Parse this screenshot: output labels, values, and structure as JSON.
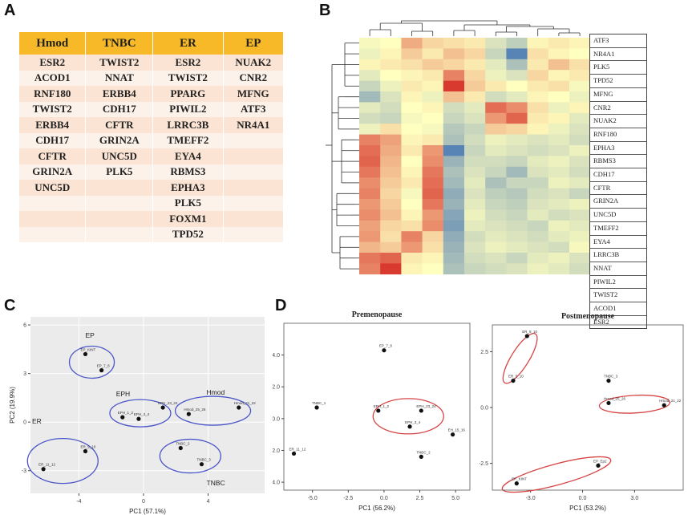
{
  "panels": {
    "a": "A",
    "b": "B",
    "c": "C",
    "d": "D"
  },
  "tableA": {
    "headers": [
      "Hmod",
      "TNBC",
      "ER",
      "EP"
    ],
    "rows": [
      [
        "ESR2",
        "TWIST2",
        "ESR2",
        "NUAK2"
      ],
      [
        "ACOD1",
        "NNAT",
        "TWIST2",
        "CNR2"
      ],
      [
        "RNF180",
        "ERBB4",
        "PPARG",
        "MFNG"
      ],
      [
        "TWIST2",
        "CDH17",
        "PIWIL2",
        "ATF3"
      ],
      [
        "ERBB4",
        "CFTR",
        "LRRC3B",
        "NR4A1"
      ],
      [
        "CDH17",
        "GRIN2A",
        "TMEFF2",
        ""
      ],
      [
        "CFTR",
        "UNC5D",
        "EYA4",
        ""
      ],
      [
        "GRIN2A",
        "PLK5",
        "RBMS3",
        ""
      ],
      [
        "UNC5D",
        "",
        "EPHA3",
        ""
      ],
      [
        "",
        "",
        "PLK5",
        ""
      ],
      [
        "",
        "",
        "FOXM1",
        ""
      ],
      [
        "",
        "",
        "TPD52",
        ""
      ]
    ]
  },
  "heatmap": {
    "genes": [
      "ATF3",
      "NR4A1",
      "PLK5",
      "TPD52",
      "MFNG",
      "CNR2",
      "NUAK2",
      "RNF180",
      "EPHA3",
      "RBMS3",
      "CDH17",
      "CFTR",
      "GRIN2A",
      "UNC5D",
      "TMEFF2",
      "EYA4",
      "LRRC3B",
      "NNAT",
      "PIWIL2",
      "TWIST2",
      "ACOD1",
      "ESR2"
    ],
    "values": [
      [
        -0.1,
        0.0,
        0.8,
        0.4,
        0.3,
        0.2,
        -0.4,
        -0.7,
        0.1,
        0.2,
        0.1
      ],
      [
        -0.2,
        0.1,
        0.5,
        0.2,
        0.6,
        0.4,
        -0.6,
        -1.8,
        0.3,
        0.1,
        0.0
      ],
      [
        0.1,
        0.2,
        0.3,
        0.5,
        0.4,
        0.2,
        -0.3,
        -0.9,
        0.2,
        0.6,
        0.3
      ],
      [
        -0.3,
        0.0,
        0.1,
        0.2,
        1.2,
        0.4,
        -0.2,
        -0.4,
        0.4,
        0.1,
        0.2
      ],
      [
        -0.6,
        -0.2,
        0.2,
        0.1,
        1.9,
        0.5,
        0.2,
        0.0,
        0.2,
        0.3,
        -0.1
      ],
      [
        -1.0,
        -0.4,
        0.1,
        -0.2,
        0.6,
        0.2,
        -0.5,
        -0.3,
        0.1,
        0.0,
        -0.2
      ],
      [
        -0.3,
        -0.5,
        0.0,
        0.1,
        -0.5,
        -0.3,
        1.4,
        1.1,
        0.3,
        -0.2,
        0.1
      ],
      [
        -0.5,
        -0.6,
        -0.1,
        0.0,
        -0.6,
        -0.4,
        1.0,
        1.5,
        0.2,
        0.1,
        -0.3
      ],
      [
        -0.2,
        0.3,
        0.0,
        -0.1,
        -0.8,
        -0.6,
        0.5,
        0.4,
        0.1,
        -0.2,
        -0.4
      ],
      [
        1.2,
        0.9,
        0.1,
        0.2,
        -0.9,
        -0.5,
        -0.2,
        -0.3,
        -0.4,
        -0.3,
        -0.5
      ],
      [
        1.4,
        0.8,
        0.2,
        1.0,
        -1.8,
        -0.6,
        -0.3,
        -0.4,
        -0.5,
        -0.4,
        -0.2
      ],
      [
        1.5,
        0.7,
        0.0,
        1.1,
        -1.1,
        -0.5,
        -0.5,
        -0.6,
        -0.3,
        -0.2,
        -0.4
      ],
      [
        1.3,
        0.6,
        0.1,
        1.3,
        -0.9,
        -0.4,
        -0.6,
        -1.0,
        -0.4,
        -0.3,
        -0.5
      ],
      [
        1.1,
        0.5,
        0.2,
        1.4,
        -1.0,
        -0.3,
        -0.9,
        -0.6,
        -0.6,
        -0.2,
        -0.3
      ],
      [
        1.2,
        0.4,
        -0.1,
        1.5,
        -1.2,
        -0.4,
        -0.7,
        -0.8,
        -0.5,
        -0.4,
        -0.6
      ],
      [
        1.0,
        0.5,
        0.0,
        1.3,
        -1.1,
        -0.3,
        -0.6,
        -0.7,
        -0.4,
        -0.3,
        -0.2
      ],
      [
        1.1,
        0.6,
        0.1,
        1.0,
        -1.3,
        -0.2,
        -0.5,
        -0.6,
        -0.3,
        -0.5,
        -0.4
      ],
      [
        0.9,
        0.4,
        0.3,
        1.1,
        -1.4,
        -0.3,
        -0.4,
        -0.5,
        -0.6,
        -0.2,
        -0.3
      ],
      [
        1.0,
        0.3,
        1.2,
        0.4,
        -1.2,
        -0.5,
        -0.3,
        -0.4,
        -0.5,
        -0.3,
        -0.2
      ],
      [
        0.7,
        0.5,
        1.0,
        0.3,
        -1.1,
        -0.4,
        -0.2,
        -0.3,
        -0.4,
        -0.5,
        -0.1
      ],
      [
        1.3,
        1.5,
        0.2,
        0.1,
        -1.0,
        -0.5,
        -0.4,
        -0.6,
        -0.3,
        -0.2,
        -0.4
      ],
      [
        1.2,
        1.9,
        0.1,
        0.0,
        -0.9,
        -0.6,
        -0.5,
        -0.4,
        -0.2,
        -0.3,
        -0.5
      ]
    ],
    "colors": {
      "low": "#4575b4",
      "mid": "#ffffbf",
      "high": "#d73027"
    }
  },
  "chart_data": [
    {
      "type": "scatter",
      "panel": "C",
      "xlabel": "PC1 (57.1%)",
      "ylabel": "PC2 (19.9%)",
      "xlim": [
        -7,
        7.5
      ],
      "ylim": [
        -4.4,
        6.5
      ],
      "xticks": [
        -4,
        0,
        4
      ],
      "yticks": [
        -3,
        0,
        3,
        6
      ],
      "points": [
        {
          "label": "EP_KINT",
          "x": -3.6,
          "y": 4.2
        },
        {
          "label": "EP_7_8",
          "x": -2.6,
          "y": 3.2
        },
        {
          "label": "EPH_1_2",
          "x": -1.3,
          "y": 0.3
        },
        {
          "label": "EPH_3_4",
          "x": -0.3,
          "y": 0.2
        },
        {
          "label": "EPH_23_24",
          "x": 1.2,
          "y": 0.9
        },
        {
          "label": "Hmod_25_26",
          "x": 2.8,
          "y": 0.5
        },
        {
          "label": "Hmod_21_22",
          "x": 5.9,
          "y": 0.9
        },
        {
          "label": "TNBC_2",
          "x": 2.3,
          "y": -1.6
        },
        {
          "label": "TNBC_3",
          "x": 3.6,
          "y": -2.6
        },
        {
          "label": "ER_9_10",
          "x": -3.6,
          "y": -1.8
        },
        {
          "label": "ER_11_12",
          "x": -6.2,
          "y": -2.9
        }
      ],
      "groups": [
        "EP",
        "EPH",
        "Hmod",
        "ER",
        "TNBC"
      ]
    },
    {
      "type": "scatter",
      "panel": "D-premenopause",
      "title": "Premenopause",
      "xlabel": "PC1 (56.2%)",
      "ylabel": "PC2 (17.6%)",
      "xlim": [
        -7,
        6
      ],
      "ylim": [
        -4.5,
        6
      ],
      "xticks": [
        -5.0,
        -2.5,
        0.0,
        2.5,
        5.0
      ],
      "yticks": [
        -4,
        -2,
        0,
        2,
        4
      ],
      "points": [
        {
          "label": "EP_7_8",
          "x": 0,
          "y": 4.3
        },
        {
          "label": "TNBC_1",
          "x": -4.7,
          "y": 0.7
        },
        {
          "label": "EPH_1_2",
          "x": -0.4,
          "y": 0.5
        },
        {
          "label": "EPH_23_24",
          "x": 2.6,
          "y": 0.5
        },
        {
          "label": "EPH_3_4",
          "x": 1.8,
          "y": -0.5
        },
        {
          "label": "EH_15_16",
          "x": 4.8,
          "y": -1.0
        },
        {
          "label": "ER_11_12",
          "x": -6.3,
          "y": -2.2
        },
        {
          "label": "TNBC_2",
          "x": 2.6,
          "y": -2.4
        }
      ]
    },
    {
      "type": "scatter",
      "panel": "D-postmenopause",
      "title": "Postmenopause",
      "xlabel": "PC1 (53.2%)",
      "ylabel": "PC2 (20.3%)",
      "xlim": [
        -5.2,
        5.8
      ],
      "ylim": [
        -3.7,
        3.7
      ],
      "xticks": [
        -3,
        0,
        3
      ],
      "yticks": [
        -2.5,
        0.0,
        2.5
      ],
      "points": [
        {
          "label": "ER_9_10",
          "x": -3.2,
          "y": 3.2
        },
        {
          "label": "ER_5_10",
          "x": -4.0,
          "y": 1.2
        },
        {
          "label": "TNBC_3",
          "x": 1.5,
          "y": 1.2
        },
        {
          "label": "Hmod_25_26",
          "x": 1.5,
          "y": 0.2
        },
        {
          "label": "Hmod_21_22",
          "x": 4.7,
          "y": 0.1
        },
        {
          "label": "EP_Ep2",
          "x": 0.9,
          "y": -2.6
        },
        {
          "label": "EP_KINT",
          "x": -3.8,
          "y": -3.4
        }
      ]
    }
  ]
}
